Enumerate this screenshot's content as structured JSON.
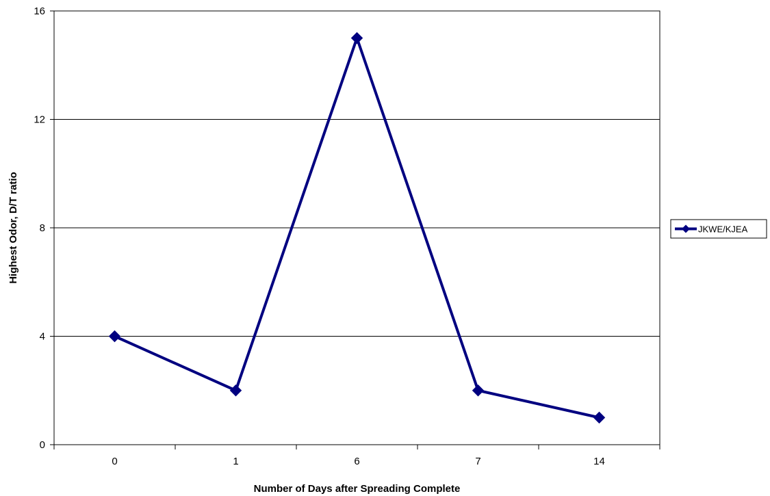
{
  "chart_data": {
    "type": "line",
    "title": "",
    "xlabel": "Number of Days after Spreading Complete",
    "ylabel": "Highest Odor, D/T ratio",
    "categories": [
      "0",
      "1",
      "6",
      "7",
      "14"
    ],
    "series": [
      {
        "name": "JKWE/KJEA",
        "values": [
          4,
          2,
          15,
          2,
          1
        ],
        "color": "#000080",
        "marker": "diamond"
      }
    ],
    "ylim": [
      0,
      16
    ],
    "yticks": [
      0,
      4,
      8,
      12,
      16
    ],
    "grid": "horizontal",
    "legend_position": "right"
  }
}
